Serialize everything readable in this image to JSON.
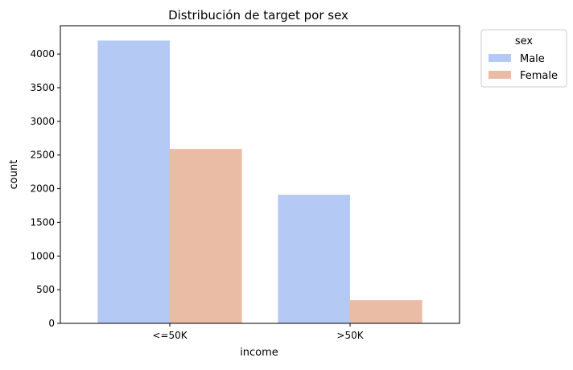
{
  "chart_data": {
    "type": "bar",
    "title": "Distribución de target por sex",
    "xlabel": "income",
    "ylabel": "count",
    "categories": [
      "<=50K",
      ">50K"
    ],
    "series": [
      {
        "name": "Male",
        "values": [
          4200,
          1910
        ],
        "color": "#b4c9f4"
      },
      {
        "name": "Female",
        "values": [
          2590,
          345
        ],
        "color": "#ebbca5"
      }
    ],
    "ylim": [
      0,
      4420
    ],
    "yticks": [
      0,
      500,
      1000,
      1500,
      2000,
      2500,
      3000,
      3500,
      4000
    ],
    "grid": false,
    "legend": {
      "title": "sex",
      "placement": "outside-upper-right"
    }
  }
}
